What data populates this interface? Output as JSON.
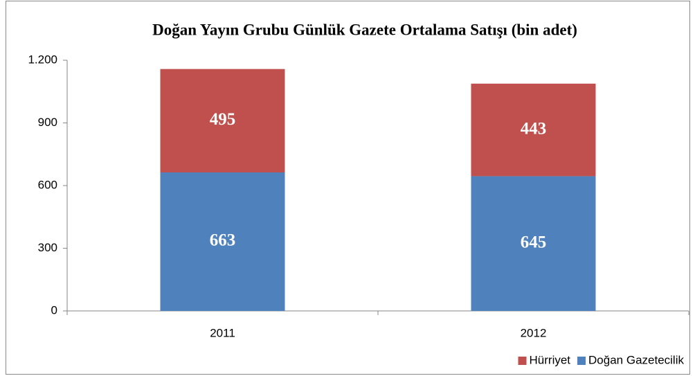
{
  "chart_data": {
    "type": "stacked_bar",
    "title": "Doğan Yayın Grubu Günlük Gazete Ortalama Satışı (bin adet)",
    "categories": [
      "2011",
      "2012"
    ],
    "series": [
      {
        "name": "Doğan Gazetecilik",
        "color": "#4f81bd",
        "values": [
          663,
          645
        ]
      },
      {
        "name": "Hürriyet",
        "color": "#c0504d",
        "values": [
          495,
          443
        ]
      }
    ],
    "ylim": [
      0,
      1200
    ],
    "yticks": [
      0,
      300,
      600,
      900,
      {
        "value": 1200,
        "label": "1.200"
      }
    ],
    "grid": false,
    "legend": "bottom-right"
  }
}
